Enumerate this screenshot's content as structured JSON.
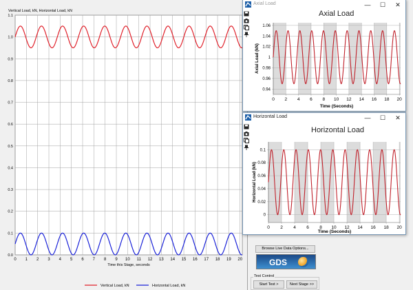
{
  "main_chart": {
    "title": "Vertical Load, kN, Horizontal Load, kN",
    "chart_data": {
      "type": "line",
      "xlabel": "Time this Stage, seconds",
      "ylabel": "",
      "xlim": [
        0,
        20.2
      ],
      "ylim": [
        0,
        1.1
      ],
      "x_ticks": [
        0,
        1,
        2,
        3,
        4,
        5,
        6,
        7,
        8,
        9,
        10,
        11,
        12,
        13,
        14,
        15,
        16,
        17,
        18,
        19,
        20
      ],
      "y_ticks": [
        0,
        0.1,
        0.2,
        0.3,
        0.4,
        0.5,
        0.6,
        0.7,
        0.8,
        0.9,
        1.0,
        1.1
      ],
      "y_tick_labels": [
        "0.0",
        "0.1",
        "0.2",
        "0.3",
        "0.4",
        "0.5",
        "0.6",
        "0.7",
        "0.8",
        "0.9",
        "1.0",
        "1.1"
      ],
      "grid": true,
      "legend_position": "bottom",
      "series": [
        {
          "name": "Vertical Load, kN",
          "color": "#e0202a",
          "mean": 1.0,
          "amplitude": 0.05,
          "period": 1.875,
          "phase": 0.0
        },
        {
          "name": "Horizontal Load, kN",
          "color": "#1a22d8",
          "mean": 0.05,
          "amplitude": 0.05,
          "period": 1.875,
          "phase": 0.0
        }
      ]
    }
  },
  "axial_window": {
    "title": "Axial Load",
    "minimize_icon": "—",
    "maximize_icon": "☐",
    "close_icon": "✕",
    "chart_data": {
      "type": "line",
      "title": "Axial Load",
      "xlabel": "Time (Seconds)",
      "ylabel": "Axial Load (kN)",
      "xlim": [
        0,
        20.2
      ],
      "ylim": [
        0.93,
        1.065
      ],
      "x_ticks": [
        0,
        2,
        4,
        6,
        8,
        10,
        12,
        14,
        16,
        18,
        20
      ],
      "x_tick_labels": [
        "0",
        "2",
        "4",
        "6",
        "8",
        "10",
        "12",
        "14",
        "16",
        "18",
        "20"
      ],
      "y_ticks": [
        0.94,
        0.96,
        0.98,
        1.0,
        1.02,
        1.04,
        1.06
      ],
      "y_tick_labels": [
        "0.94",
        "0.96",
        "0.98",
        "1",
        "1.02",
        "1.04",
        "1.06"
      ],
      "grid": true,
      "series": [
        {
          "color": "#c0202a",
          "mean": 1.0,
          "amplitude": 0.05,
          "period": 1.875,
          "phase": 0.0
        }
      ]
    }
  },
  "horizontal_window": {
    "title": "Horizontal Load",
    "minimize_icon": "—",
    "maximize_icon": "☐",
    "close_icon": "✕",
    "chart_data": {
      "type": "line",
      "title": "Horizontal Load",
      "xlabel": "Time (Seconds)",
      "ylabel": "Horizontal Load (kN)",
      "xlim": [
        0,
        20.2
      ],
      "ylim": [
        -0.012,
        0.112
      ],
      "x_ticks": [
        0,
        2,
        4,
        6,
        8,
        10,
        12,
        14,
        16,
        18,
        20
      ],
      "x_tick_labels": [
        "0",
        "2",
        "4",
        "6",
        "8",
        "10",
        "12",
        "14",
        "16",
        "18",
        "20"
      ],
      "y_ticks": [
        0,
        0.02,
        0.04,
        0.06,
        0.08,
        0.1
      ],
      "y_tick_labels": [
        "0",
        "0.02",
        "0.04",
        "0.06",
        "0.08",
        "0.1"
      ],
      "grid": true,
      "series": [
        {
          "color": "#c0202a",
          "mean": 0.05,
          "amplitude": 0.05,
          "period": 1.875,
          "phase": 0.0
        }
      ]
    }
  },
  "side_panel": {
    "browse_button": "Browse Live Data Options...",
    "logo_text": "GDS",
    "test_control_label": "Test Control",
    "start_test_button": "Start Test >",
    "next_stage_button": "Next Stage >>"
  },
  "colors": {
    "grid": "#a0a0a0",
    "band": "#dcdcdc",
    "window_border": "#7a9ab8"
  }
}
